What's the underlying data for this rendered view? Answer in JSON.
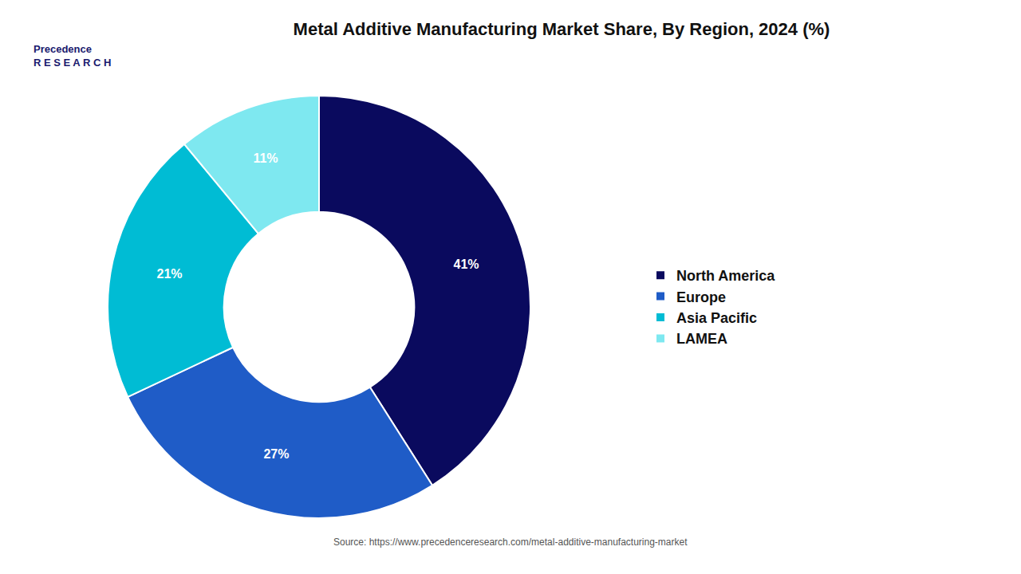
{
  "chart_data": {
    "type": "donut",
    "title": "Metal Additive Manufacturing Market Share, By Region, 2024 (%)",
    "categories": [
      "North America",
      "Europe",
      "Asia Pacific",
      "LAMEA"
    ],
    "values": [
      41,
      27,
      21,
      11
    ],
    "value_labels": [
      "41%",
      "27%",
      "21%",
      "11%"
    ],
    "data_labels": true,
    "colors": [
      "#0a0a5e",
      "#1f5cc7",
      "#00bcd4",
      "#7ee8f0"
    ],
    "legend": "right",
    "annotations": [
      "Source: https://www.precedenceresearch.com/metal-additive-manufacturing-market",
      "Precedence\nR E S E A R C H"
    ]
  }
}
